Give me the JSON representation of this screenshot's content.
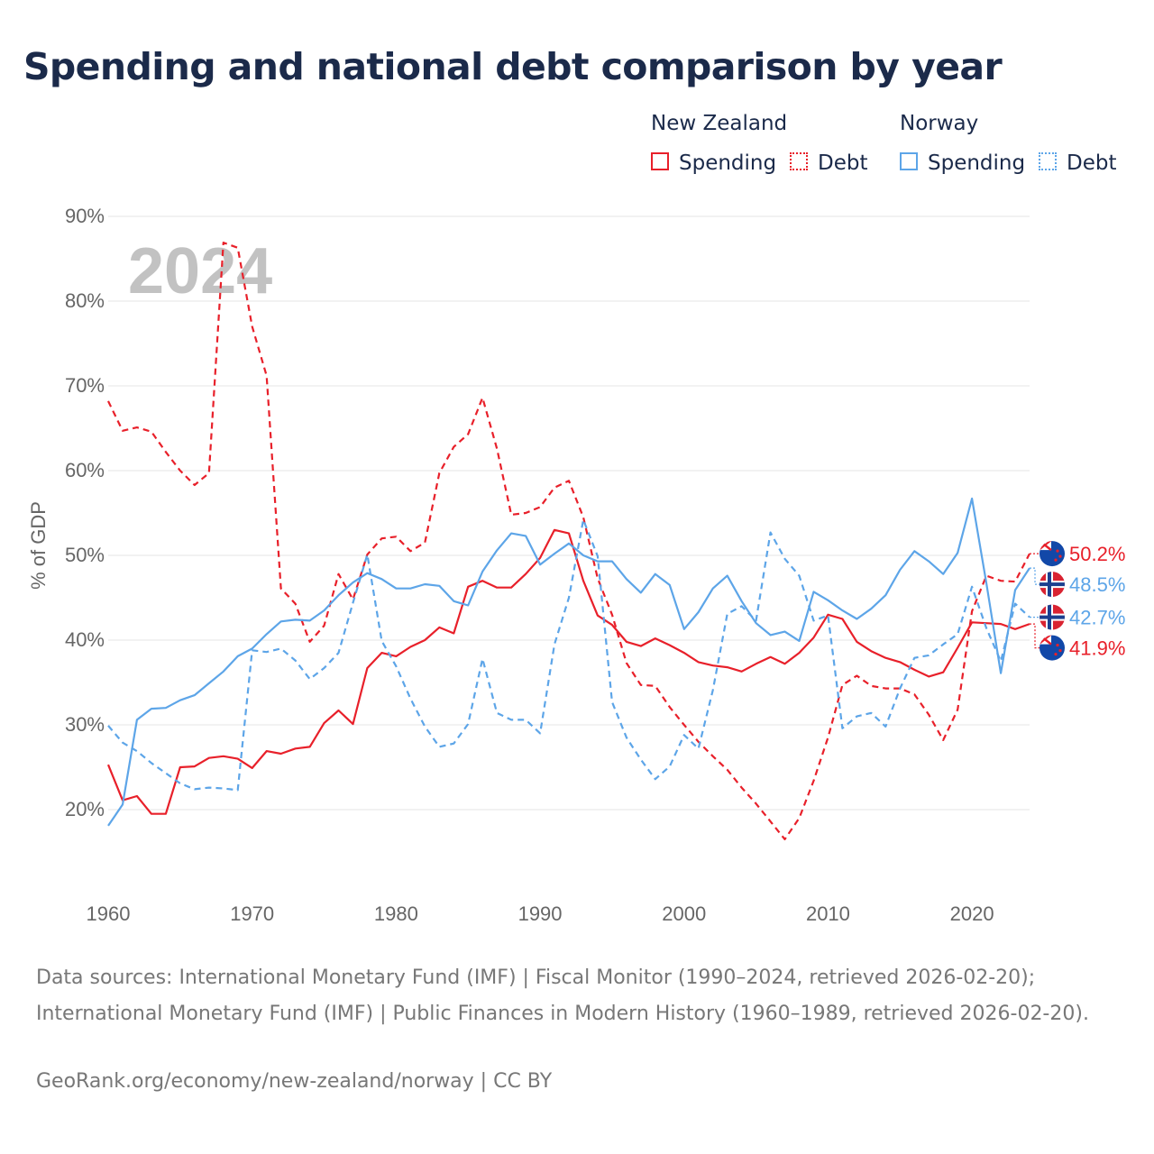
{
  "title": "Spending and national debt comparison by year",
  "legend": {
    "groups": [
      {
        "name": "New Zealand",
        "items": [
          {
            "label": "Spending",
            "style": "solid",
            "color": "#e8202a"
          },
          {
            "label": "Debt",
            "style": "dotted",
            "color": "#e8202a"
          }
        ]
      },
      {
        "name": "Norway",
        "items": [
          {
            "label": "Spending",
            "style": "solid",
            "color": "#5da5e8"
          },
          {
            "label": "Debt",
            "style": "dotted",
            "color": "#5da5e8"
          }
        ]
      }
    ]
  },
  "chart_data": {
    "type": "line",
    "title": "Spending and national debt comparison by year",
    "year_overlay": "2024",
    "xlabel": "",
    "ylabel": "% of GDP",
    "xlim": [
      1960,
      2024
    ],
    "ylim": [
      10,
      90
    ],
    "x_ticks": [
      "1960",
      "1970",
      "1980",
      "1990",
      "2000",
      "2010",
      "2020"
    ],
    "y_ticks": [
      "20%",
      "30%",
      "40%",
      "50%",
      "60%",
      "70%",
      "80%",
      "90%"
    ],
    "x": [
      1960,
      1961,
      1962,
      1963,
      1964,
      1965,
      1966,
      1967,
      1968,
      1969,
      1970,
      1971,
      1972,
      1973,
      1974,
      1975,
      1976,
      1977,
      1978,
      1979,
      1980,
      1981,
      1982,
      1983,
      1984,
      1985,
      1986,
      1987,
      1988,
      1989,
      1990,
      1991,
      1992,
      1993,
      1994,
      1995,
      1996,
      1997,
      1998,
      1999,
      2000,
      2001,
      2002,
      2003,
      2004,
      2005,
      2006,
      2007,
      2008,
      2009,
      2010,
      2011,
      2012,
      2013,
      2014,
      2015,
      2016,
      2017,
      2018,
      2019,
      2020,
      2021,
      2022,
      2023,
      2024
    ],
    "series": [
      {
        "name": "New Zealand Spending",
        "country": "New Zealand",
        "measure": "Spending",
        "color": "#e8202a",
        "dash": "solid",
        "values": [
          25.3,
          21.1,
          21.6,
          19.5,
          19.5,
          25.0,
          25.1,
          26.1,
          26.3,
          26.0,
          24.9,
          26.9,
          26.6,
          27.2,
          27.4,
          30.2,
          31.7,
          30.1,
          36.7,
          38.5,
          38.1,
          39.2,
          40.0,
          41.5,
          40.8,
          46.3,
          47.0,
          46.2,
          46.2,
          47.8,
          49.7,
          53.0,
          52.6,
          47.0,
          42.9,
          41.8,
          39.8,
          39.3,
          40.2,
          39.4,
          38.5,
          37.4,
          37.0,
          36.8,
          36.3,
          37.2,
          38.0,
          37.2,
          38.5,
          40.3,
          43.0,
          42.5,
          39.8,
          38.7,
          37.9,
          37.4,
          36.5,
          35.7,
          36.2,
          39.1,
          42.1,
          42.0,
          41.9,
          41.3,
          41.9
        ],
        "end_label": "41.9%"
      },
      {
        "name": "New Zealand Debt",
        "country": "New Zealand",
        "measure": "Debt",
        "color": "#e8202a",
        "dash": "dashed",
        "values": [
          68.2,
          64.7,
          65.1,
          64.6,
          62.2,
          60.0,
          58.3,
          59.7,
          86.9,
          86.3,
          77.0,
          71.2,
          46.1,
          44.3,
          39.8,
          41.7,
          47.8,
          44.8,
          50.1,
          52.0,
          52.2,
          50.5,
          51.5,
          59.7,
          62.8,
          64.3,
          68.6,
          62.6,
          54.8,
          55.0,
          55.7,
          58.0,
          58.8,
          54.5,
          47.3,
          43.0,
          37.3,
          34.7,
          34.6,
          32.1,
          30.0,
          28.0,
          26.3,
          24.7,
          22.6,
          20.7,
          18.6,
          16.5,
          19.0,
          23.4,
          28.5,
          34.7,
          35.8,
          34.6,
          34.3,
          34.3,
          33.6,
          31.2,
          28.2,
          31.8,
          43.4,
          47.6,
          47.0,
          46.9,
          50.2
        ],
        "end_label": "50.2%"
      },
      {
        "name": "Norway Spending",
        "country": "Norway",
        "measure": "Spending",
        "color": "#5da5e8",
        "dash": "solid",
        "values": [
          18.1,
          20.6,
          30.6,
          31.9,
          32.0,
          32.9,
          33.5,
          34.9,
          36.3,
          38.1,
          39.0,
          40.7,
          42.2,
          42.4,
          42.3,
          43.5,
          45.3,
          46.8,
          47.9,
          47.2,
          46.1,
          46.1,
          46.6,
          46.4,
          44.6,
          44.1,
          48.1,
          50.6,
          52.6,
          52.3,
          48.9,
          50.2,
          51.4,
          50.0,
          49.3,
          49.3,
          47.2,
          45.6,
          47.8,
          46.5,
          41.3,
          43.3,
          46.1,
          47.6,
          44.6,
          42.0,
          40.6,
          41.0,
          39.9,
          45.7,
          44.7,
          43.5,
          42.5,
          43.7,
          45.3,
          48.3,
          50.5,
          49.3,
          47.8,
          50.3,
          56.7,
          46.7,
          36.1,
          45.9,
          48.5
        ],
        "end_label": "48.5%"
      },
      {
        "name": "Norway Debt",
        "country": "Norway",
        "measure": "Debt",
        "color": "#5da5e8",
        "dash": "dashed",
        "values": [
          29.9,
          27.9,
          26.9,
          25.5,
          24.3,
          23.1,
          22.4,
          22.6,
          22.5,
          22.3,
          38.8,
          38.6,
          39.0,
          37.6,
          35.4,
          36.7,
          38.5,
          44.4,
          50.1,
          39.9,
          36.9,
          33.1,
          29.8,
          27.4,
          27.8,
          30.1,
          37.8,
          31.4,
          30.6,
          30.6,
          29.0,
          39.5,
          45.0,
          54.2,
          49.9,
          32.7,
          28.5,
          25.9,
          23.6,
          25.1,
          28.8,
          27.2,
          34.1,
          43.1,
          44.0,
          42.3,
          52.7,
          49.6,
          47.6,
          42.3,
          42.9,
          29.6,
          31.0,
          31.4,
          29.8,
          34.3,
          37.9,
          38.2,
          39.5,
          40.7,
          46.3,
          41.4,
          37.5,
          44.3,
          42.7
        ],
        "end_label": "42.7%"
      }
    ]
  }
}
